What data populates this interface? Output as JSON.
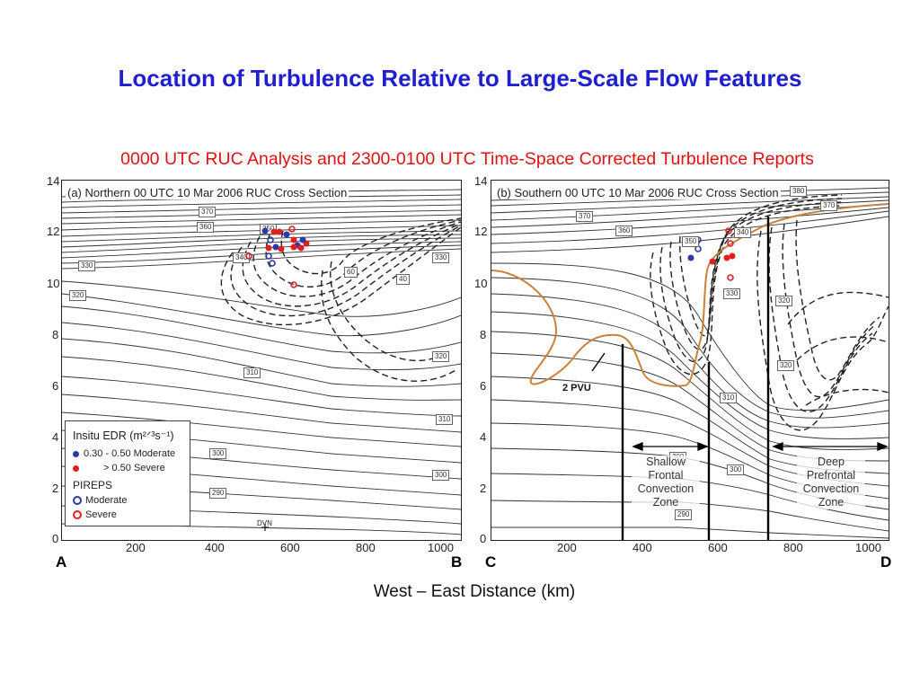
{
  "slide": {
    "title": "Location of Turbulence Relative to Large-Scale Flow Features",
    "subtitle": "0000 UTC RUC Analysis and 2300-0100 UTC Time-Space Corrected Turbulence Reports",
    "x_axis_title": "West – East Distance (km)"
  },
  "panels": [
    {
      "id": "a",
      "title": "(a) Northern 00 UTC 10 Mar 2006 RUC Cross Section",
      "left_end": "A",
      "right_end": "B",
      "y_ticks": [
        "14",
        "12",
        "10",
        "8",
        "6",
        "4",
        "2",
        "0"
      ],
      "x_ticks": [
        "200",
        "400",
        "600",
        "800",
        "1000"
      ],
      "isentrope_labels": [
        "370",
        "360",
        "330",
        "320",
        "310",
        "300",
        "290",
        "300",
        "310",
        "320",
        "330",
        "340",
        "350",
        "40",
        "60"
      ],
      "station": "DVN"
    },
    {
      "id": "b",
      "title": "(b) Southern 00 UTC 10 Mar 2006 RUC Cross Section",
      "left_end": "C",
      "right_end": "D",
      "y_ticks": [
        "14",
        "12",
        "10",
        "8",
        "6",
        "4",
        "2",
        "0"
      ],
      "x_ticks": [
        "200",
        "400",
        "600",
        "800",
        "1000"
      ],
      "isentrope_labels": [
        "380",
        "370",
        "370",
        "360",
        "340",
        "330",
        "320",
        "310",
        "300",
        "300",
        "290",
        "350",
        "320"
      ],
      "annotation": "2 PVU",
      "zones": [
        {
          "name": "Shallow Frontal Convection Zone",
          "lines": [
            "Shallow",
            "Frontal",
            "Convection",
            "Zone"
          ]
        },
        {
          "name": "Deep Prefrontal Convection Zone",
          "lines": [
            "Deep",
            "Prefrontal",
            "Convection",
            "Zone"
          ]
        }
      ]
    }
  ],
  "legend": {
    "title": "Insitu EDR (m²ᐟ³s⁻¹)",
    "items": [
      {
        "label": "0.30 - 0.50  Moderate",
        "marker": "filled-dot",
        "color": "#2a3aa8"
      },
      {
        "label": "> 0.50  Severe",
        "marker": "filled-dot",
        "color": "#e02020"
      }
    ],
    "pireps_title": "PIREPS",
    "pireps": [
      {
        "label": "Moderate",
        "marker": "open-circle",
        "color": "#2a3aa8"
      },
      {
        "label": "Severe",
        "marker": "open-circle",
        "color": "#e02020"
      }
    ]
  },
  "colors": {
    "title": "#1f1fd1",
    "subtitle": "#e21010",
    "moderate": "#2a3aa8",
    "severe": "#e02020",
    "pvu_contour": "#c8823a"
  }
}
